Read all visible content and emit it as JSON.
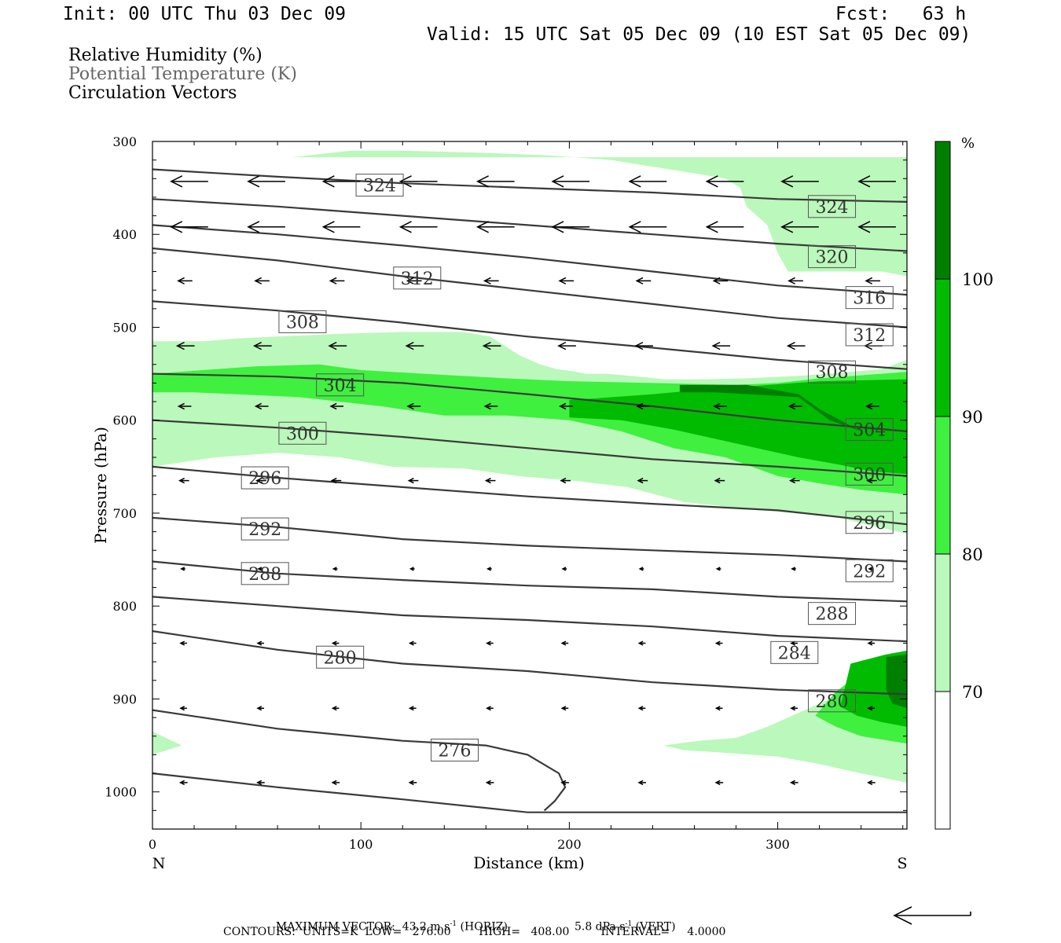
{
  "header": {
    "init": "Init: 00 UTC Thu 03 Dec 09",
    "fcst": "Fcst:   63 h",
    "valid": "Valid: 15 UTC Sat 05 Dec 09 (10 EST Sat 05 Dec 09)"
  },
  "legend_text": {
    "rh": "Relative Humidity (%)",
    "theta": "Potential Temperature (K)",
    "vectors": "Circulation Vectors"
  },
  "chart_data": {
    "type": "cross-section",
    "xlabel": "Distance (km)",
    "ylabel": "Pressure (hPa)",
    "xlim": [
      0,
      362
    ],
    "ylim": [
      300,
      1040
    ],
    "x_ticks": [
      0,
      100,
      200,
      300
    ],
    "y_ticks": [
      300,
      400,
      500,
      600,
      700,
      800,
      900,
      1000
    ],
    "end_labels": {
      "left": "N",
      "right": "S"
    },
    "colorbar": {
      "unit": "%",
      "labels": [
        "70",
        "80",
        "90",
        "100"
      ],
      "levels": [
        70,
        80,
        90,
        100
      ],
      "colors": [
        "#ffffff",
        "#bbf8bb",
        "#3ff03f",
        "#00bb00",
        "#007f00"
      ]
    },
    "rh_regions": [
      {
        "level": 70,
        "color": "#bbf8bb",
        "points": [
          [
            67,
            317
          ],
          [
            110,
            317
          ],
          [
            140,
            317
          ],
          [
            362,
            317
          ],
          [
            362,
            535
          ],
          [
            350,
            545
          ],
          [
            335,
            548
          ],
          [
            312,
            552
          ],
          [
            302,
            553
          ],
          [
            285,
            555
          ],
          [
            262,
            556
          ],
          [
            246,
            556
          ],
          [
            233,
            553
          ],
          [
            218,
            550
          ],
          [
            208,
            550
          ],
          [
            201,
            547
          ],
          [
            194,
            545
          ],
          [
            186,
            540
          ],
          [
            176,
            530
          ],
          [
            167,
            517
          ],
          [
            162,
            510
          ],
          [
            149,
            505
          ],
          [
            120,
            505
          ],
          [
            90,
            507
          ],
          [
            60,
            510
          ],
          [
            40,
            512
          ],
          [
            25,
            515
          ],
          [
            0,
            515
          ],
          [
            0,
            585
          ],
          [
            0,
            650
          ],
          [
            30,
            640
          ],
          [
            60,
            635
          ],
          [
            90,
            640
          ],
          [
            115,
            650
          ],
          [
            150,
            652
          ],
          [
            175,
            660
          ],
          [
            202,
            665
          ],
          [
            228,
            672
          ],
          [
            255,
            688
          ],
          [
            288,
            696
          ],
          [
            308,
            700
          ],
          [
            330,
            705
          ],
          [
            342,
            712
          ],
          [
            362,
            722
          ],
          [
            362,
            445
          ],
          [
            350,
            440
          ],
          [
            320,
            440
          ],
          [
            305,
            440
          ],
          [
            300,
            420
          ],
          [
            295,
            390
          ],
          [
            285,
            370
          ],
          [
            282,
            350
          ],
          [
            275,
            340
          ],
          [
            262,
            335
          ],
          [
            248,
            330
          ],
          [
            220,
            320
          ],
          [
            190,
            315
          ],
          [
            156,
            312
          ],
          [
            120,
            310
          ],
          [
            95,
            310
          ]
        ]
      },
      {
        "level": 70,
        "color": "#bbf8bb",
        "points": [
          [
            0,
            935
          ],
          [
            14,
            950
          ],
          [
            0,
            960
          ]
        ]
      },
      {
        "level": 70,
        "color": "#bbf8bb",
        "points": [
          [
            245,
            950
          ],
          [
            262,
            945
          ],
          [
            280,
            942
          ],
          [
            295,
            930
          ],
          [
            325,
            900
          ],
          [
            345,
            880
          ],
          [
            362,
            868
          ],
          [
            362,
            990
          ],
          [
            340,
            980
          ],
          [
            320,
            970
          ],
          [
            300,
            962
          ],
          [
            275,
            958
          ],
          [
            255,
            955
          ]
        ]
      },
      {
        "level": 80,
        "color": "#3ff03f",
        "points": [
          [
            0,
            550
          ],
          [
            50,
            542
          ],
          [
            80,
            540
          ],
          [
            100,
            546
          ],
          [
            130,
            550
          ],
          [
            170,
            555
          ],
          [
            200,
            558
          ],
          [
            240,
            560
          ],
          [
            280,
            562
          ],
          [
            300,
            560
          ],
          [
            320,
            555
          ],
          [
            362,
            548
          ],
          [
            362,
            680
          ],
          [
            340,
            675
          ],
          [
            320,
            668
          ],
          [
            300,
            660
          ],
          [
            275,
            640
          ],
          [
            250,
            630
          ],
          [
            225,
            612
          ],
          [
            200,
            600
          ],
          [
            170,
            595
          ],
          [
            140,
            595
          ],
          [
            110,
            585
          ],
          [
            90,
            580
          ],
          [
            70,
            575
          ],
          [
            40,
            572
          ],
          [
            20,
            570
          ],
          [
            0,
            570
          ]
        ]
      },
      {
        "level": 80,
        "color": "#3ff03f",
        "points": [
          [
            318,
            918
          ],
          [
            328,
            892
          ],
          [
            340,
            872
          ],
          [
            362,
            862
          ],
          [
            362,
            948
          ],
          [
            340,
            940
          ],
          [
            328,
            930
          ]
        ]
      },
      {
        "level": 90,
        "color": "#00bb00",
        "points": [
          [
            200,
            578
          ],
          [
            210,
            577
          ],
          [
            240,
            572
          ],
          [
            265,
            567
          ],
          [
            290,
            563
          ],
          [
            320,
            558
          ],
          [
            362,
            556
          ],
          [
            362,
            658
          ],
          [
            345,
            655
          ],
          [
            330,
            648
          ],
          [
            310,
            640
          ],
          [
            290,
            630
          ],
          [
            270,
            620
          ],
          [
            250,
            610
          ],
          [
            225,
            600
          ],
          [
            200,
            597
          ]
        ]
      },
      {
        "level": 90,
        "color": "#00bb00",
        "points": [
          [
            335,
            862
          ],
          [
            352,
            852
          ],
          [
            362,
            848
          ],
          [
            362,
            930
          ],
          [
            350,
            925
          ],
          [
            338,
            918
          ],
          [
            330,
            908
          ],
          [
            332,
            890
          ]
        ]
      },
      {
        "level": 100,
        "color": "#007f00",
        "points": [
          [
            253,
            562
          ],
          [
            285,
            562
          ],
          [
            310,
            572
          ],
          [
            320,
            588
          ],
          [
            340,
            612
          ],
          [
            362,
            612
          ],
          [
            362,
            612
          ],
          [
            340,
            612
          ],
          [
            325,
            600
          ],
          [
            310,
            575
          ],
          [
            270,
            570
          ],
          [
            253,
            570
          ]
        ]
      },
      {
        "level": 100,
        "color": "#007f00",
        "points": [
          [
            352,
            855
          ],
          [
            362,
            852
          ],
          [
            362,
            910
          ],
          [
            355,
            905
          ],
          [
            352,
            890
          ]
        ]
      }
    ],
    "theta_contours": [
      {
        "value": 324,
        "points": [
          [
            0,
            330
          ],
          [
            60,
            338
          ],
          [
            120,
            345
          ],
          [
            180,
            350
          ],
          [
            240,
            355
          ],
          [
            300,
            362
          ],
          [
            362,
            365
          ]
        ]
      },
      {
        "value": 320,
        "points": [
          [
            0,
            362
          ],
          [
            60,
            370
          ],
          [
            120,
            380
          ],
          [
            180,
            390
          ],
          [
            240,
            400
          ],
          [
            300,
            410
          ],
          [
            362,
            418
          ]
        ]
      },
      {
        "value": 316,
        "points": [
          [
            0,
            390
          ],
          [
            60,
            400
          ],
          [
            120,
            412
          ],
          [
            180,
            425
          ],
          [
            240,
            440
          ],
          [
            300,
            455
          ],
          [
            362,
            465
          ]
        ]
      },
      {
        "value": 312,
        "points": [
          [
            0,
            415
          ],
          [
            60,
            428
          ],
          [
            120,
            445
          ],
          [
            180,
            460
          ],
          [
            240,
            475
          ],
          [
            300,
            490
          ],
          [
            362,
            500
          ]
        ]
      },
      {
        "value": 308,
        "points": [
          [
            0,
            472
          ],
          [
            60,
            482
          ],
          [
            120,
            495
          ],
          [
            180,
            510
          ],
          [
            240,
            522
          ],
          [
            300,
            535
          ],
          [
            362,
            545
          ]
        ]
      },
      {
        "value": 304,
        "points": [
          [
            0,
            550
          ],
          [
            60,
            553
          ],
          [
            120,
            560
          ],
          [
            180,
            572
          ],
          [
            240,
            585
          ],
          [
            300,
            600
          ],
          [
            362,
            612
          ]
        ]
      },
      {
        "value": 300,
        "points": [
          [
            0,
            600
          ],
          [
            60,
            608
          ],
          [
            120,
            618
          ],
          [
            180,
            630
          ],
          [
            240,
            642
          ],
          [
            300,
            650
          ],
          [
            362,
            660
          ]
        ]
      },
      {
        "value": 296,
        "points": [
          [
            0,
            650
          ],
          [
            60,
            662
          ],
          [
            120,
            672
          ],
          [
            180,
            682
          ],
          [
            240,
            690
          ],
          [
            300,
            697
          ],
          [
            362,
            712
          ]
        ]
      },
      {
        "value": 292,
        "points": [
          [
            0,
            705
          ],
          [
            60,
            715
          ],
          [
            120,
            728
          ],
          [
            180,
            735
          ],
          [
            240,
            740
          ],
          [
            300,
            745
          ],
          [
            362,
            752
          ]
        ]
      },
      {
        "value": 288,
        "points": [
          [
            0,
            752
          ],
          [
            60,
            765
          ],
          [
            120,
            772
          ],
          [
            180,
            778
          ],
          [
            240,
            782
          ],
          [
            300,
            790
          ],
          [
            362,
            795
          ]
        ]
      },
      {
        "value": 284,
        "points": [
          [
            0,
            790
          ],
          [
            60,
            800
          ],
          [
            120,
            810
          ],
          [
            180,
            815
          ],
          [
            240,
            822
          ],
          [
            300,
            832
          ],
          [
            362,
            838
          ]
        ]
      },
      {
        "value": 280,
        "points": [
          [
            0,
            827
          ],
          [
            60,
            847
          ],
          [
            120,
            862
          ],
          [
            180,
            870
          ],
          [
            240,
            882
          ],
          [
            300,
            890
          ],
          [
            362,
            895
          ]
        ]
      },
      {
        "value": 276,
        "points": [
          [
            0,
            912
          ],
          [
            60,
            932
          ],
          [
            120,
            945
          ],
          [
            160,
            950
          ],
          [
            180,
            960
          ],
          [
            195,
            980
          ],
          [
            198,
            995
          ],
          [
            193,
            1010
          ],
          [
            188,
            1020
          ]
        ]
      }
    ],
    "contour_labels": [
      {
        "text": "324",
        "x": 109,
        "p": 347
      },
      {
        "text": "324",
        "x": 326,
        "p": 370
      },
      {
        "text": "320",
        "x": 326,
        "p": 424
      },
      {
        "text": "316",
        "x": 344,
        "p": 468
      },
      {
        "text": "312",
        "x": 127,
        "p": 447
      },
      {
        "text": "312",
        "x": 344,
        "p": 508
      },
      {
        "text": "308",
        "x": 72,
        "p": 494
      },
      {
        "text": "308",
        "x": 326,
        "p": 548
      },
      {
        "text": "304",
        "x": 90,
        "p": 562
      },
      {
        "text": "304",
        "x": 344,
        "p": 610
      },
      {
        "text": "300",
        "x": 72,
        "p": 614
      },
      {
        "text": "300",
        "x": 344,
        "p": 658
      },
      {
        "text": "296",
        "x": 54,
        "p": 662
      },
      {
        "text": "296",
        "x": 344,
        "p": 710
      },
      {
        "text": "292",
        "x": 54,
        "p": 717
      },
      {
        "text": "292",
        "x": 344,
        "p": 762
      },
      {
        "text": "288",
        "x": 54,
        "p": 765
      },
      {
        "text": "288",
        "x": 326,
        "p": 808
      },
      {
        "text": "284",
        "x": 308,
        "p": 850
      },
      {
        "text": "280",
        "x": 90,
        "p": 855
      },
      {
        "text": "280",
        "x": 326,
        "p": 902
      },
      {
        "text": "276",
        "x": 145,
        "p": 955
      }
    ],
    "vector_rows": [
      {
        "p": 343,
        "len": 45
      },
      {
        "p": 392,
        "len": 45
      },
      {
        "p": 450,
        "len": 16
      },
      {
        "p": 520,
        "len": 20
      },
      {
        "p": 585,
        "len": 14
      },
      {
        "p": 665,
        "len": 10
      },
      {
        "p": 760,
        "len": 3
      },
      {
        "p": 840,
        "len": 6
      },
      {
        "p": 910,
        "len": 6
      },
      {
        "p": 990,
        "len": 7
      }
    ],
    "vector_columns": [
      3,
      40,
      76,
      113,
      150,
      186,
      223,
      260,
      296,
      333
    ]
  },
  "footer": {
    "max_vector": "MAXIMUM VECTOR:  43.2 m s",
    "max_vector_mid": " (HORIZ)",
    "max_vector_vert": "5.8 dPa s",
    "max_vector_end": " (VERT)",
    "exp": "-1",
    "contours": "CONTOURS:  UNITS=K  LOW=   276.00        HIGH=   408.00         INTERVAL=     4.0000"
  }
}
